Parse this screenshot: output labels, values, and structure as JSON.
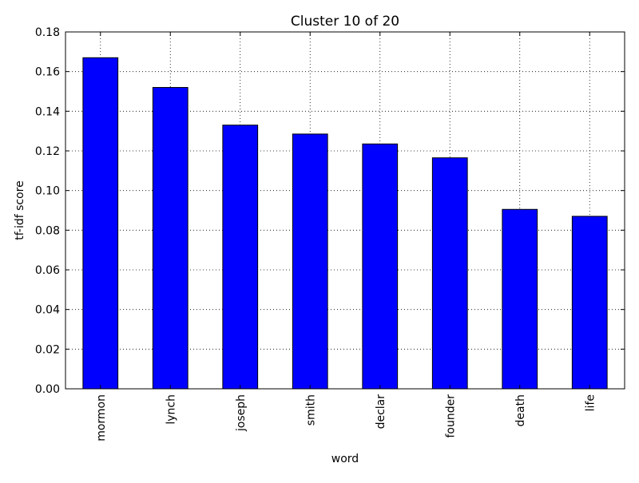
{
  "chart_data": {
    "type": "bar",
    "title": "Cluster 10 of 20",
    "xlabel": "word",
    "ylabel": "tf-idf score",
    "categories": [
      "mormon",
      "lynch",
      "joseph",
      "smith",
      "declar",
      "founder",
      "death",
      "life"
    ],
    "values": [
      0.167,
      0.152,
      0.133,
      0.1285,
      0.1235,
      0.1165,
      0.0905,
      0.087
    ],
    "ylim": [
      0,
      0.18
    ],
    "yticks": [
      "0.00",
      "0.02",
      "0.04",
      "0.06",
      "0.08",
      "0.10",
      "0.12",
      "0.14",
      "0.16",
      "0.18"
    ],
    "grid": true,
    "legend": "none",
    "bar_color": "#0000ff"
  }
}
